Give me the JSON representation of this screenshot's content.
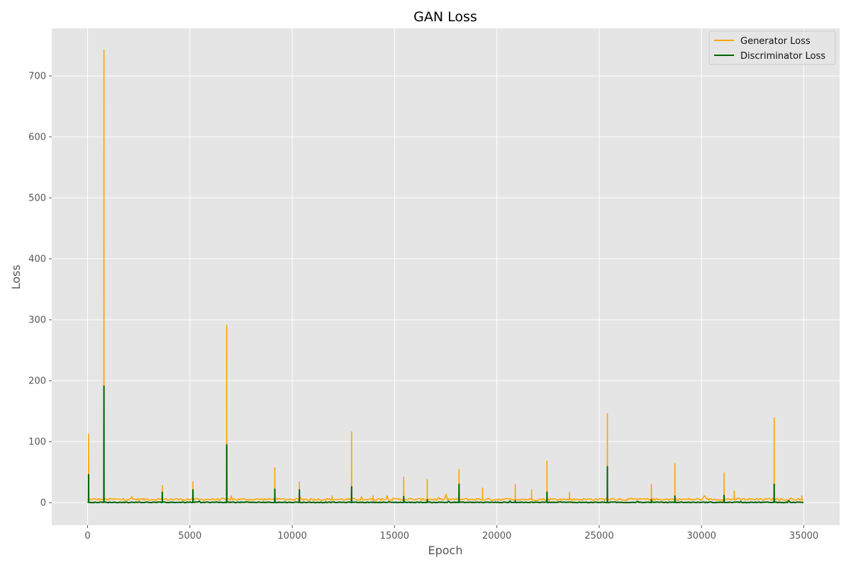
{
  "chart_data": {
    "type": "line",
    "title": "GAN Loss",
    "xlabel": "Epoch",
    "ylabel": "Loss",
    "xlim": [
      -1750,
      36750
    ],
    "ylim": [
      -37,
      778
    ],
    "xticks": [
      0,
      5000,
      10000,
      15000,
      20000,
      25000,
      30000,
      35000
    ],
    "yticks": [
      0,
      100,
      200,
      300,
      400,
      500,
      600,
      700
    ],
    "grid": true,
    "legend_position": "top-right",
    "colors": {
      "plot_background": "#e5e5e5",
      "grid": "#ffffff",
      "generator": "#ffa500",
      "discriminator": "#006400"
    },
    "series": [
      {
        "name": "Generator Loss",
        "baseline": 5,
        "peaks": [
          {
            "x": 50,
            "y": 112
          },
          {
            "x": 800,
            "y": 742
          },
          {
            "x": 3650,
            "y": 28
          },
          {
            "x": 5150,
            "y": 34
          },
          {
            "x": 6800,
            "y": 291
          },
          {
            "x": 9150,
            "y": 57
          },
          {
            "x": 10350,
            "y": 34
          },
          {
            "x": 11950,
            "y": 11
          },
          {
            "x": 12900,
            "y": 116
          },
          {
            "x": 13950,
            "y": 11
          },
          {
            "x": 15450,
            "y": 42
          },
          {
            "x": 16600,
            "y": 38
          },
          {
            "x": 18150,
            "y": 54
          },
          {
            "x": 19300,
            "y": 24
          },
          {
            "x": 20900,
            "y": 30
          },
          {
            "x": 21700,
            "y": 21
          },
          {
            "x": 22450,
            "y": 68
          },
          {
            "x": 23550,
            "y": 17
          },
          {
            "x": 25400,
            "y": 146
          },
          {
            "x": 27550,
            "y": 30
          },
          {
            "x": 28700,
            "y": 64
          },
          {
            "x": 31100,
            "y": 49
          },
          {
            "x": 31600,
            "y": 19
          },
          {
            "x": 33550,
            "y": 139
          },
          {
            "x": 34900,
            "y": 11
          }
        ]
      },
      {
        "name": "Discriminator Loss",
        "baseline": 0.5,
        "peaks": [
          {
            "x": 50,
            "y": 46
          },
          {
            "x": 800,
            "y": 191
          },
          {
            "x": 3650,
            "y": 17
          },
          {
            "x": 5150,
            "y": 21
          },
          {
            "x": 6800,
            "y": 95
          },
          {
            "x": 9150,
            "y": 22
          },
          {
            "x": 10350,
            "y": 21
          },
          {
            "x": 12900,
            "y": 26
          },
          {
            "x": 15450,
            "y": 10
          },
          {
            "x": 16600,
            "y": 5
          },
          {
            "x": 18150,
            "y": 30
          },
          {
            "x": 20900,
            "y": 3
          },
          {
            "x": 22450,
            "y": 17
          },
          {
            "x": 25400,
            "y": 59
          },
          {
            "x": 27550,
            "y": 5
          },
          {
            "x": 28700,
            "y": 11
          },
          {
            "x": 31100,
            "y": 12
          },
          {
            "x": 33550,
            "y": 30
          }
        ]
      }
    ],
    "x_range": [
      0,
      35000
    ]
  }
}
